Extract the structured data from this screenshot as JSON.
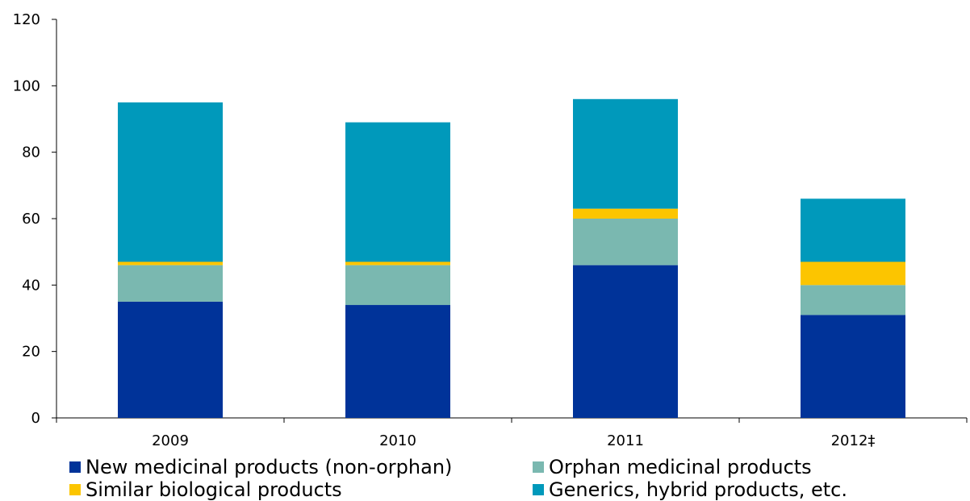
{
  "chart_data": {
    "type": "bar",
    "stacked": true,
    "title": "",
    "xlabel": "",
    "ylabel": "",
    "categories": [
      "2009",
      "2010",
      "2011",
      "2012‡"
    ],
    "ylim": [
      0,
      120
    ],
    "yticks": [
      0,
      20,
      40,
      60,
      80,
      100,
      120
    ],
    "grid": false,
    "legend_position": "bottom",
    "series": [
      {
        "name": "New medicinal products (non-orphan)",
        "color": "#003399",
        "values": [
          35,
          34,
          46,
          31
        ]
      },
      {
        "name": "Orphan medicinal products",
        "color": "#7ab8b0",
        "values": [
          11,
          12,
          14,
          9
        ]
      },
      {
        "name": "Similar biological products",
        "color": "#fcc500",
        "values": [
          1,
          1,
          3,
          7
        ]
      },
      {
        "name": "Generics, hybrid products, etc.",
        "color": "#0099bb",
        "values": [
          48,
          42,
          33,
          19
        ]
      }
    ]
  }
}
